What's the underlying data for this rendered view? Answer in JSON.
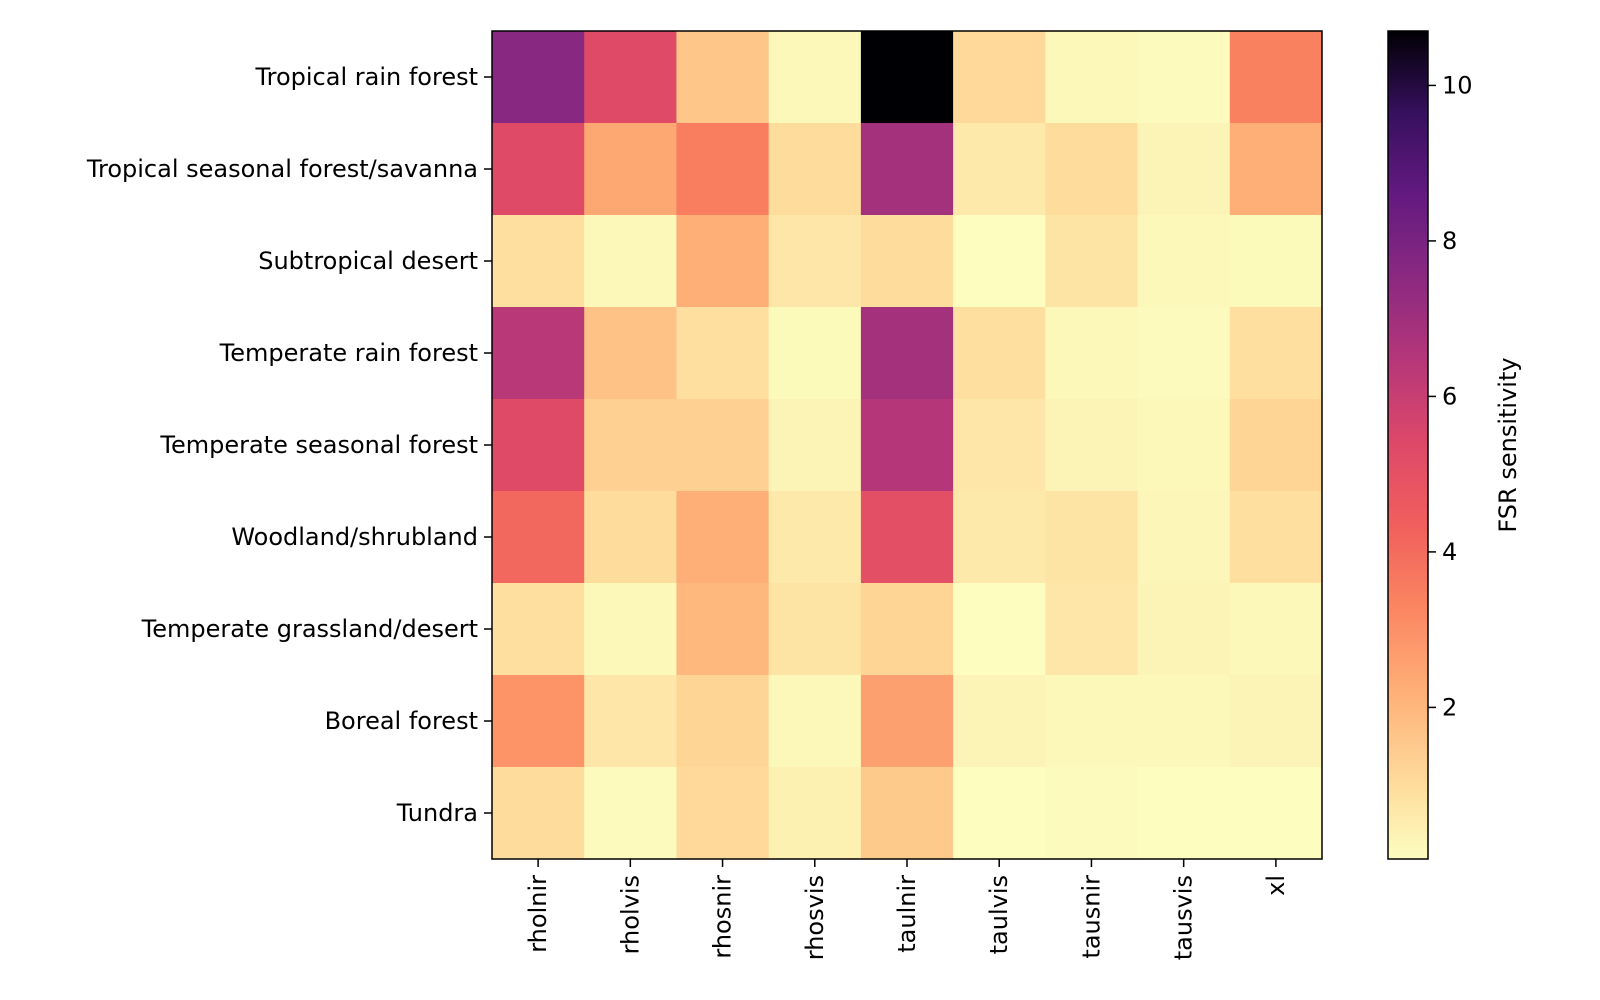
{
  "chart_data": {
    "type": "heatmap",
    "title": "",
    "xlabel": "",
    "ylabel": "",
    "x_categories": [
      "rholnir",
      "rholvis",
      "rhosnir",
      "rhosvis",
      "taulnir",
      "taulvis",
      "tausnir",
      "tausvis",
      "xl"
    ],
    "y_categories": [
      "Tropical rain forest",
      "Tropical seasonal forest/savanna",
      "Subtropical desert",
      "Temperate rain forest",
      "Temperate seasonal forest",
      "Woodland/shrubland",
      "Temperate grassland/desert",
      "Boreal forest",
      "Tundra"
    ],
    "values": [
      [
        7.6,
        5.3,
        1.6,
        0.2,
        10.7,
        1.1,
        0.2,
        0.1,
        3.4
      ],
      [
        5.3,
        2.4,
        3.5,
        1.0,
        6.9,
        0.6,
        1.0,
        0.3,
        2.2
      ],
      [
        0.9,
        0.2,
        2.2,
        0.7,
        1.0,
        0.05,
        0.8,
        0.2,
        0.15
      ],
      [
        6.4,
        1.7,
        0.9,
        0.15,
        6.9,
        0.9,
        0.2,
        0.1,
        0.9
      ],
      [
        5.3,
        1.3,
        1.3,
        0.3,
        6.5,
        0.7,
        0.3,
        0.2,
        1.2
      ],
      [
        4.1,
        1.0,
        2.2,
        0.6,
        5.1,
        0.6,
        0.8,
        0.25,
        0.9
      ],
      [
        0.9,
        0.2,
        2.0,
        0.8,
        1.2,
        0.05,
        0.7,
        0.3,
        0.2
      ],
      [
        2.9,
        0.7,
        1.2,
        0.2,
        2.6,
        0.3,
        0.2,
        0.2,
        0.3
      ],
      [
        1.0,
        0.1,
        1.1,
        0.4,
        1.5,
        0.05,
        0.1,
        0.05,
        0.05
      ]
    ],
    "vmin": 0.05,
    "vmax": 10.7,
    "colormap": "magma_r",
    "colorbar": {
      "label": "FSR sensitivity",
      "ticks": [
        2,
        4,
        6,
        8,
        10
      ]
    },
    "grid": false
  }
}
